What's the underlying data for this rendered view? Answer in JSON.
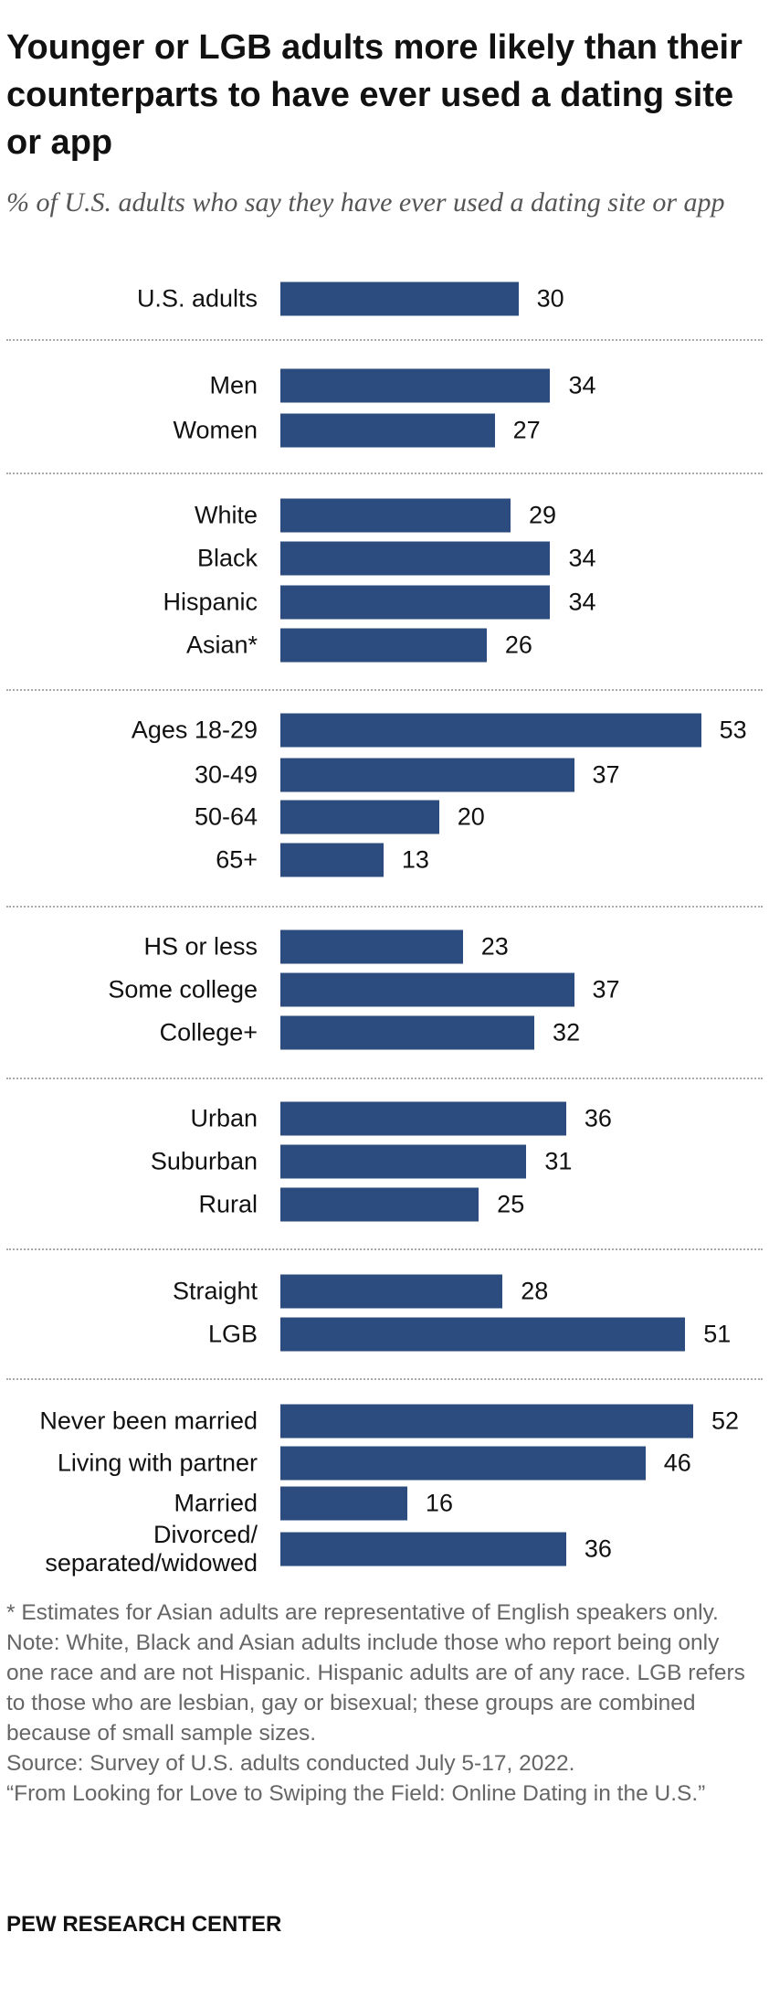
{
  "chart_data": {
    "type": "bar",
    "title": "Younger or LGB adults more likely than their counterparts to have ever used a dating site or app",
    "subtitle": "% of U.S. adults who say they have ever used a dating site or app",
    "categories": [
      "U.S. adults",
      "Men",
      "Women",
      "White",
      "Black",
      "Hispanic",
      "Asian*",
      "Ages 18-29",
      "30-49",
      "50-64",
      "65+",
      "HS or less",
      "Some college",
      "College+",
      "Urban",
      "Suburban",
      "Rural",
      "Straight",
      "LGB",
      "Never been married",
      "Living with partner",
      "Married",
      "Divorced/\nseparated/widowed"
    ],
    "values": [
      30,
      34,
      27,
      29,
      34,
      34,
      26,
      53,
      37,
      20,
      13,
      23,
      37,
      32,
      36,
      31,
      25,
      28,
      51,
      52,
      46,
      16,
      36
    ],
    "color": "#2c4b7e",
    "notes": [
      "* Estimates for Asian adults are representative of English speakers only.",
      "Note: White, Black and Asian adults include those who report being only one race and are not Hispanic. Hispanic adults are of any race. LGB refers to those who are lesbian, gay or bisexual; these groups are combined because of small sample sizes.",
      "Source: Survey of U.S. adults conducted July 5-17, 2022.",
      "“From Looking for Love to Swiping the Field: Online Dating in the U.S.”"
    ],
    "source_org": "PEW RESEARCH CENTER"
  }
}
